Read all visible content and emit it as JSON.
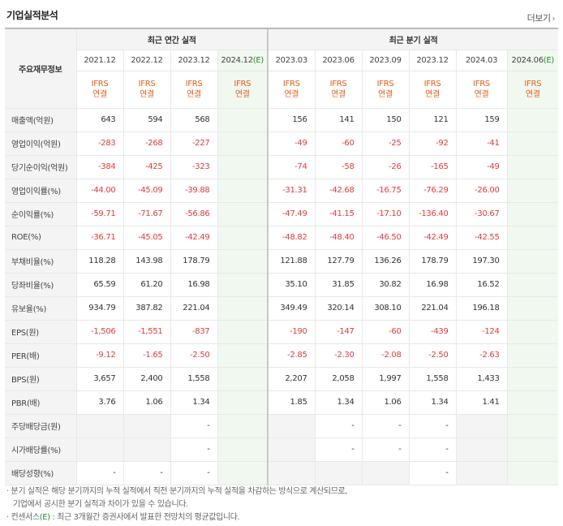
{
  "header": {
    "title": "기업실적분석",
    "more": "더보기",
    "more_arrow": "›"
  },
  "table": {
    "label_header": "주요재무정보",
    "group_annual": "최근 연간 실적",
    "group_quarter": "최근 분기 실적",
    "annual_periods": [
      "2021.12",
      "2022.12",
      "2023.12",
      "2024.12"
    ],
    "quarter_periods": [
      "2023.03",
      "2023.06",
      "2023.09",
      "2023.12",
      "2024.03",
      "2024.06"
    ],
    "estimate_mark": "(E)",
    "ifrs_top": "IFRS",
    "ifrs_bottom": "연결",
    "rows": [
      {
        "label": "매출액(억원)",
        "annual": [
          "643",
          "594",
          "568",
          ""
        ],
        "quarter": [
          "156",
          "141",
          "150",
          "121",
          "159",
          ""
        ]
      },
      {
        "label": "영업이익(억원)",
        "annual": [
          "-283",
          "-268",
          "-227",
          ""
        ],
        "quarter": [
          "-49",
          "-60",
          "-25",
          "-92",
          "-41",
          ""
        ]
      },
      {
        "label": "당기순이익(억원)",
        "annual": [
          "-384",
          "-425",
          "-323",
          ""
        ],
        "quarter": [
          "-74",
          "-58",
          "-26",
          "-165",
          "-49",
          ""
        ]
      },
      {
        "label": "영업이익률(%)",
        "annual": [
          "-44.00",
          "-45.09",
          "-39.88",
          ""
        ],
        "quarter": [
          "-31.31",
          "-42.68",
          "-16.75",
          "-76.29",
          "-26.00",
          ""
        ]
      },
      {
        "label": "순이익률(%)",
        "annual": [
          "-59.71",
          "-71.67",
          "-56.86",
          ""
        ],
        "quarter": [
          "-47.49",
          "-41.15",
          "-17.10",
          "-136.40",
          "-30.67",
          ""
        ]
      },
      {
        "label": "ROE(%)",
        "annual": [
          "-36.71",
          "-45.05",
          "-42.49",
          ""
        ],
        "quarter": [
          "-48.82",
          "-48.40",
          "-46.50",
          "-42.49",
          "-42.55",
          ""
        ]
      },
      {
        "label": "부채비율(%)",
        "annual": [
          "118.28",
          "143.98",
          "178.79",
          ""
        ],
        "quarter": [
          "121.88",
          "127.79",
          "136.26",
          "178.79",
          "197.30",
          ""
        ]
      },
      {
        "label": "당좌비율(%)",
        "annual": [
          "65.59",
          "61.20",
          "16.98",
          ""
        ],
        "quarter": [
          "35.10",
          "31.85",
          "30.82",
          "16.98",
          "16.52",
          ""
        ]
      },
      {
        "label": "유보율(%)",
        "annual": [
          "934.79",
          "387.82",
          "221.04",
          ""
        ],
        "quarter": [
          "349.49",
          "320.14",
          "308.10",
          "221.04",
          "196.18",
          ""
        ]
      },
      {
        "label": "EPS(원)",
        "annual": [
          "-1,506",
          "-1,551",
          "-837",
          ""
        ],
        "quarter": [
          "-190",
          "-147",
          "-60",
          "-439",
          "-124",
          ""
        ]
      },
      {
        "label": "PER(배)",
        "annual": [
          "-9.12",
          "-1.65",
          "-2.50",
          ""
        ],
        "quarter": [
          "-2.85",
          "-2.30",
          "-2.08",
          "-2.50",
          "-2.63",
          ""
        ]
      },
      {
        "label": "BPS(원)",
        "annual": [
          "3,657",
          "2,400",
          "1,558",
          ""
        ],
        "quarter": [
          "2,207",
          "2,058",
          "1,997",
          "1,558",
          "1,433",
          ""
        ]
      },
      {
        "label": "PBR(배)",
        "annual": [
          "3.76",
          "1.06",
          "1.34",
          ""
        ],
        "quarter": [
          "1.85",
          "1.34",
          "1.06",
          "1.34",
          "1.41",
          ""
        ]
      },
      {
        "label": "주당배당금(원)",
        "annual": [
          "",
          "",
          "-",
          ""
        ],
        "quarter": [
          "",
          "-",
          "-",
          "-",
          "",
          ""
        ]
      },
      {
        "label": "시가배당률(%)",
        "annual": [
          "",
          "",
          "-",
          ""
        ],
        "quarter": [
          "",
          "-",
          "-",
          "-",
          "",
          ""
        ]
      },
      {
        "label": "배당성향(%)",
        "annual": [
          "-",
          "-",
          "-",
          ""
        ],
        "quarter": [
          "",
          "",
          "",
          "-",
          "",
          ""
        ]
      }
    ]
  },
  "notes": {
    "line1": "· 분기 실적은 해당 분기까지의 누적 실적에서 직전 분기까지의 누적 실적을 차감하는 방식으로 계산되므로,",
    "line2": "  기업에서 공시한 분기 실적과 차이가 있을 수 있습니다.",
    "line3_pre": "· 컨센서스",
    "line3_mark": "(E)",
    "line3_post": " : 최근 3개월간 증권사에서 발표한 전망치의 평균값입니다."
  },
  "colors": {
    "negative": "#e03a3a",
    "estimate_bg": "#f0f8f0",
    "ifrs": "#e0601b",
    "estimate_mark": "#2a8a2a"
  }
}
